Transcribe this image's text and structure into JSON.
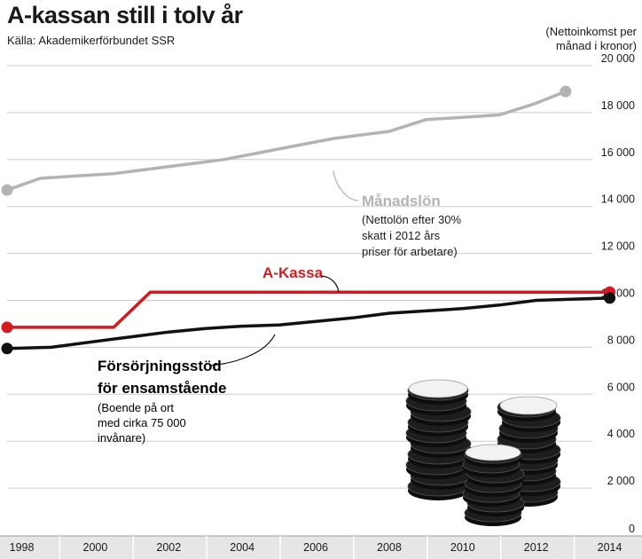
{
  "title": "A-kassan still i tolv år",
  "source": "Källa: Akademikerförbundet SSR",
  "unit_label": [
    "(Nettoinkomst per",
    "månad i kronor)"
  ],
  "colors": {
    "manadslon": "#b3b3b3",
    "akassa": "#d71920",
    "forsorjning": "#111111",
    "grid": "#cccccc"
  },
  "annotations": {
    "manadslon_name": "Månadslön",
    "manadslon_note": [
      "(Nettolön efter 30%",
      "skatt i 2012 års",
      "priser för arbetare)"
    ],
    "akassa_name": "A-Kassa",
    "forsorjning_name": [
      "Försörjningsstöd",
      "för ensamstående"
    ],
    "forsorjning_note": [
      "(Boende på ort",
      "med cirka 75 000",
      "invånare)"
    ]
  },
  "chart_data": {
    "type": "line",
    "title": "A-kassan still i tolv år",
    "ylabel": "(Nettoinkomst per månad i kronor)",
    "xlim": [
      1997.6,
      2014.3
    ],
    "ylim": [
      0,
      20000
    ],
    "x_ticks": [
      1998,
      2000,
      2002,
      2004,
      2006,
      2008,
      2010,
      2012,
      2014
    ],
    "x_tick_labels": [
      "1998",
      "2000",
      "2002",
      "2004",
      "2006",
      "2008",
      "2010",
      "2012",
      "2014"
    ],
    "y_ticks": [
      0,
      2000,
      4000,
      6000,
      8000,
      10000,
      12000,
      14000,
      16000,
      18000,
      20000
    ],
    "y_tick_labels": [
      "0",
      "2 000",
      "4 000",
      "6 000",
      "8 000",
      "10 000",
      "12 000",
      "14 000",
      "16 000",
      "18 000",
      "20 000"
    ],
    "grid": true,
    "series": [
      {
        "name": "Månadslön",
        "x": [
          1997.6,
          1998.5,
          1999.5,
          2000.5,
          2001.5,
          2002.5,
          2003.5,
          2004.5,
          2005.5,
          2006.5,
          2007.5,
          2008,
          2009,
          2010,
          2011,
          2012,
          2012.8
        ],
        "y": [
          14700,
          15200,
          15300,
          15400,
          15600,
          15800,
          16000,
          16300,
          16600,
          16900,
          17100,
          17200,
          17700,
          17800,
          17900,
          18400,
          18900
        ]
      },
      {
        "name": "A-Kassa",
        "x": [
          1997.6,
          2000.5,
          2001.5,
          2014
        ],
        "y": [
          8850,
          8850,
          10350,
          10350
        ]
      },
      {
        "name": "Försörjningsstöd för ensamstående",
        "x": [
          1997.6,
          1998.8,
          2000,
          2001,
          2002,
          2003,
          2004,
          2005,
          2006,
          2007,
          2008,
          2009,
          2010,
          2011,
          2012,
          2014
        ],
        "y": [
          7950,
          8000,
          8250,
          8450,
          8650,
          8800,
          8900,
          8950,
          9100,
          9250,
          9450,
          9550,
          9650,
          9800,
          10000,
          10100
        ]
      }
    ]
  }
}
